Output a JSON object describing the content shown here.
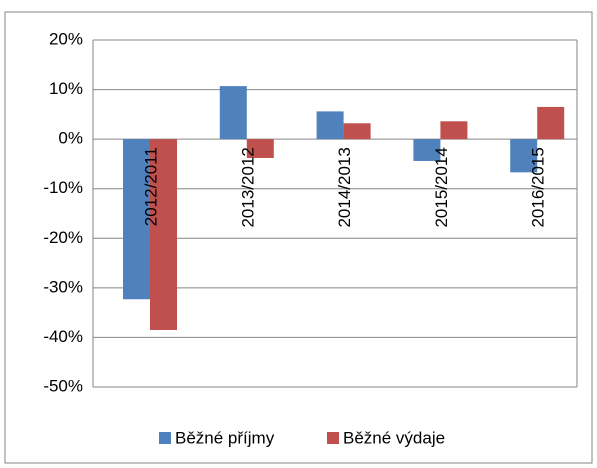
{
  "chart_data": {
    "type": "bar",
    "categories": [
      "2012/2011",
      "2013/2012",
      "2014/2013",
      "2015/2014",
      "2016/2015"
    ],
    "series": [
      {
        "name": "Běžné příjmy",
        "color": "#4f81bd",
        "values": [
          -32.3,
          10.7,
          5.6,
          -4.4,
          -6.7
        ]
      },
      {
        "name": "Běžné výdaje",
        "color": "#c0504d",
        "values": [
          -38.5,
          -3.8,
          3.2,
          3.6,
          6.5
        ]
      }
    ],
    "ylim": [
      -50,
      20
    ],
    "yticks": [
      {
        "value": -50,
        "label": "-50%"
      },
      {
        "value": -40,
        "label": "-40%"
      },
      {
        "value": -30,
        "label": "-30%"
      },
      {
        "value": -20,
        "label": "-20%"
      },
      {
        "value": -10,
        "label": "-10%"
      },
      {
        "value": 0,
        "label": "0%"
      },
      {
        "value": 10,
        "label": "10%"
      },
      {
        "value": 20,
        "label": "20%"
      }
    ],
    "grid": true,
    "legend": "bottom"
  }
}
